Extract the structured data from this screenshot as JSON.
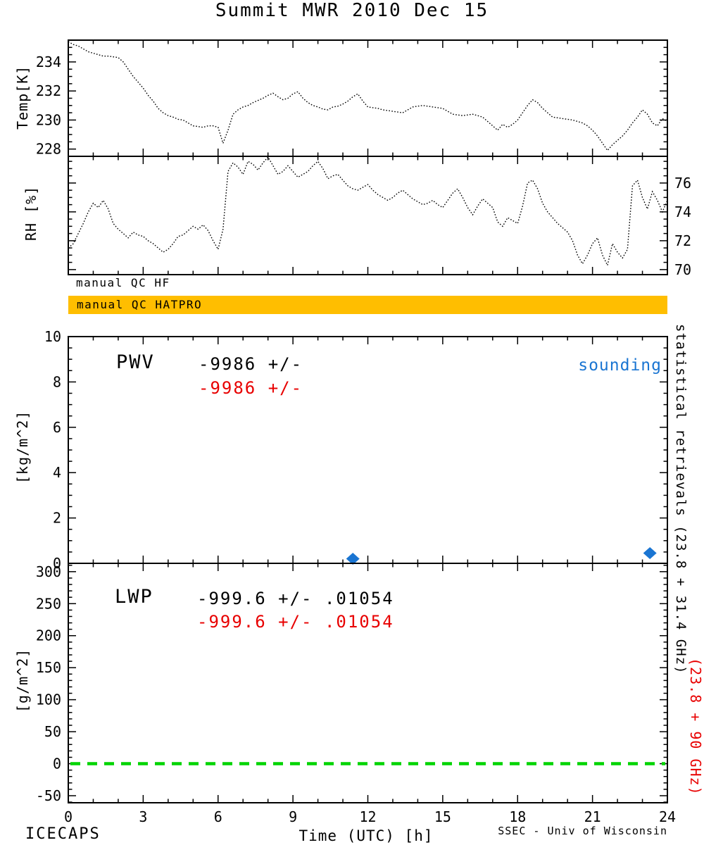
{
  "title": "Summit MWR 2010 Dec 15",
  "colors": {
    "qc_bar": "#ffbe00",
    "red": "#e80000",
    "blue": "#1a75d2",
    "green": "#00d400",
    "line": "#000000"
  },
  "qc": {
    "hf_label": "manual QC HF",
    "hatpro_label": "manual QC HATPRO"
  },
  "annotations": {
    "pwv_label": "PWV",
    "pwv_stat_black": "-9986 +/-",
    "pwv_stat_red": "-9986 +/-",
    "sounding_label": "sounding",
    "lwp_label": "LWP",
    "lwp_stat_black": "-999.6 +/- .01054",
    "lwp_stat_red": "-999.6 +/- .01054"
  },
  "right_labels": {
    "black": "statistical retrievals (23.8 + 31.4 GHz)",
    "red": "(23.8 + 90 GHz)"
  },
  "footer": {
    "project": "ICECAPS",
    "credit": "SSEC - Univ of Wisconsin"
  },
  "chart_data": [
    {
      "panel": "temp",
      "type": "line",
      "ylabel": "Temp[K]",
      "xlim": [
        0,
        24
      ],
      "ylim": [
        227.5,
        235.5
      ],
      "yticks": [
        228,
        230,
        232,
        234
      ],
      "ytick_side": "left",
      "y_minor": 0.5,
      "xticks": [
        0,
        3,
        6,
        9,
        12,
        15,
        18,
        21,
        24
      ],
      "x_minor": 1,
      "line_style": "dotted",
      "color": "#000000",
      "x_start": 0,
      "x_step": 0.2,
      "values": [
        235.4,
        235.2,
        235.1,
        234.9,
        234.7,
        234.6,
        234.5,
        234.4,
        234.4,
        234.35,
        234.3,
        234.0,
        233.5,
        233.0,
        232.6,
        232.2,
        231.7,
        231.3,
        230.8,
        230.5,
        230.3,
        230.2,
        230.05,
        230.0,
        229.8,
        229.6,
        229.55,
        229.5,
        229.6,
        229.6,
        229.5,
        228.4,
        229.3,
        230.4,
        230.7,
        230.9,
        231.0,
        231.2,
        231.35,
        231.5,
        231.7,
        231.85,
        231.6,
        231.4,
        231.5,
        231.8,
        231.95,
        231.5,
        231.2,
        231.0,
        230.9,
        230.75,
        230.7,
        230.9,
        230.95,
        231.1,
        231.3,
        231.6,
        231.8,
        231.3,
        230.9,
        230.85,
        230.8,
        230.7,
        230.65,
        230.6,
        230.55,
        230.5,
        230.7,
        230.9,
        230.95,
        231.0,
        230.95,
        230.9,
        230.85,
        230.8,
        230.6,
        230.4,
        230.35,
        230.3,
        230.35,
        230.4,
        230.3,
        230.2,
        229.9,
        229.6,
        229.3,
        229.7,
        229.5,
        229.7,
        230.0,
        230.5,
        231.0,
        231.4,
        231.2,
        230.8,
        230.5,
        230.2,
        230.15,
        230.1,
        230.05,
        230.0,
        229.9,
        229.8,
        229.6,
        229.3,
        228.9,
        228.4,
        227.9,
        228.3,
        228.6,
        228.9,
        229.3,
        229.8,
        230.2,
        230.7,
        230.4,
        229.8,
        229.6,
        230.1,
        229.9
      ]
    },
    {
      "panel": "rh",
      "type": "line",
      "ylabel": "RH [%]",
      "xlim": [
        0,
        24
      ],
      "ylim": [
        69.65,
        77.85
      ],
      "yticks": [
        70,
        72,
        74,
        76
      ],
      "ytick_side": "right",
      "y_minor": 0.5,
      "xticks": [
        0,
        3,
        6,
        9,
        12,
        15,
        18,
        21,
        24
      ],
      "x_minor": 1,
      "line_style": "dotted",
      "color": "#000000",
      "x_start": 0,
      "x_step": 0.2,
      "values": [
        71.5,
        71.8,
        72.5,
        73.2,
        74.0,
        74.6,
        74.3,
        74.8,
        74.2,
        73.2,
        72.8,
        72.5,
        72.2,
        72.6,
        72.4,
        72.3,
        72.0,
        71.8,
        71.5,
        71.2,
        71.4,
        71.8,
        72.3,
        72.4,
        72.7,
        73.0,
        72.8,
        73.1,
        72.7,
        72.0,
        71.4,
        72.8,
        76.8,
        77.4,
        77.1,
        76.6,
        77.5,
        77.3,
        76.9,
        77.4,
        77.8,
        77.2,
        76.6,
        76.8,
        77.2,
        76.8,
        76.4,
        76.6,
        76.8,
        77.2,
        77.5,
        77.0,
        76.3,
        76.5,
        76.6,
        76.2,
        75.8,
        75.6,
        75.5,
        75.7,
        75.9,
        75.5,
        75.2,
        75.0,
        74.8,
        75.0,
        75.3,
        75.5,
        75.2,
        74.9,
        74.7,
        74.5,
        74.6,
        74.8,
        74.5,
        74.3,
        74.8,
        75.3,
        75.6,
        75.0,
        74.3,
        73.8,
        74.4,
        74.9,
        74.6,
        74.3,
        73.3,
        73.0,
        73.6,
        73.4,
        73.2,
        74.4,
        76.0,
        76.2,
        75.6,
        74.6,
        74.0,
        73.6,
        73.2,
        72.9,
        72.6,
        72.0,
        71.0,
        70.4,
        71.0,
        71.8,
        72.2,
        71.0,
        70.3,
        71.8,
        71.2,
        70.8,
        71.4,
        75.8,
        76.2,
        75.0,
        74.2,
        75.4,
        74.8,
        74.0,
        74.8
      ]
    },
    {
      "panel": "pwv",
      "type": "scatter",
      "ylabel": "[kg/m^2]",
      "xlim": [
        0,
        24
      ],
      "ylim": [
        0,
        10
      ],
      "yticks": [
        0,
        2,
        4,
        6,
        8,
        10
      ],
      "ytick_side": "left",
      "y_minor": 0.5,
      "xticks": [
        0,
        3,
        6,
        9,
        12,
        15,
        18,
        21,
        24
      ],
      "x_minor": 1,
      "series": [
        {
          "name": "sounding",
          "color": "#1a75d2",
          "marker": "diamond",
          "points": [
            [
              11.4,
              0.2
            ],
            [
              23.3,
              0.45
            ]
          ]
        }
      ]
    },
    {
      "panel": "lwp",
      "type": "line",
      "ylabel": "[g/m^2]",
      "xlabel": "Time (UTC) [h]",
      "xlim": [
        0,
        24
      ],
      "ylim": [
        -61,
        313
      ],
      "yticks": [
        -50,
        0,
        50,
        100,
        150,
        200,
        250,
        300
      ],
      "ytick_side": "left",
      "y_minor": 10,
      "xticks": [
        0,
        3,
        6,
        9,
        12,
        15,
        18,
        21,
        24
      ],
      "xtick_labels": true,
      "x_minor": 1,
      "zero_line": {
        "y": 0,
        "color": "#00d400",
        "style": "dashed"
      }
    }
  ]
}
